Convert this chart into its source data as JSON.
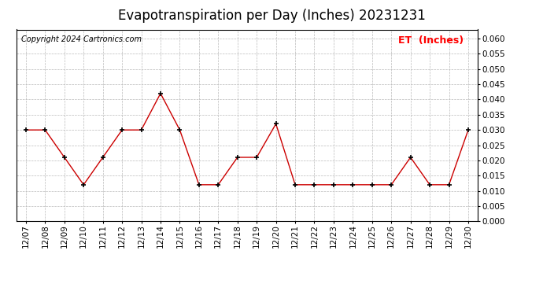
{
  "title": "Evapotranspiration per Day (Inches) 20231231",
  "copyright": "Copyright 2024 Cartronics.com",
  "legend_label": "ET  (Inches)",
  "legend_color": "#ff0000",
  "copyright_color": "#000000",
  "line_color": "#cc0000",
  "marker_color": "#000000",
  "background_color": "#ffffff",
  "grid_color": "#bbbbbb",
  "dates": [
    "12/07",
    "12/08",
    "12/09",
    "12/10",
    "12/11",
    "12/12",
    "12/13",
    "12/14",
    "12/15",
    "12/16",
    "12/17",
    "12/18",
    "12/19",
    "12/20",
    "12/21",
    "12/22",
    "12/23",
    "12/24",
    "12/25",
    "12/26",
    "12/27",
    "12/28",
    "12/29",
    "12/30"
  ],
  "values": [
    0.03,
    0.03,
    0.021,
    0.012,
    0.021,
    0.03,
    0.03,
    0.042,
    0.03,
    0.012,
    0.012,
    0.021,
    0.021,
    0.032,
    0.012,
    0.012,
    0.012,
    0.012,
    0.012,
    0.012,
    0.021,
    0.012,
    0.012,
    0.03
  ],
  "ylim": [
    0.0,
    0.063
  ],
  "yticks": [
    0.0,
    0.005,
    0.01,
    0.015,
    0.02,
    0.025,
    0.03,
    0.035,
    0.04,
    0.045,
    0.05,
    0.055,
    0.06
  ],
  "title_fontsize": 12,
  "copyright_fontsize": 7,
  "legend_fontsize": 9,
  "tick_fontsize": 7.5
}
